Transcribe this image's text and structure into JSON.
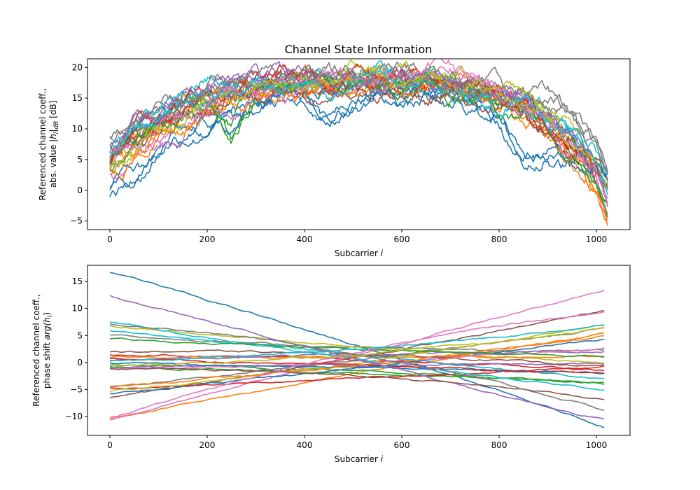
{
  "figure": {
    "title": "Channel State Information"
  },
  "palette": [
    "#1f77b4",
    "#ff7f0e",
    "#2ca02c",
    "#d62728",
    "#9467bd",
    "#8c564b",
    "#e377c2",
    "#7f7f7f",
    "#bcbd22",
    "#17becf"
  ],
  "chart_data": [
    {
      "type": "line",
      "title": "Channel State Information",
      "xlabel_text": "Subcarrier ",
      "xlabel_var": "i",
      "ylabel_line1": "Referenced channel coeff.,",
      "ylabel_line2_text": "abs. value ",
      "ylabel_line2_expr": "|h",
      "ylabel_line2_sub": "i",
      "ylabel_line2_expr2": "|",
      "ylabel_line2_sub2": "dB",
      "ylabel_line2_unit": " [dB]",
      "xlim": [
        -46,
        1069
      ],
      "ylim": [
        -6.4,
        21.4
      ],
      "x_ticks": [
        0,
        200,
        400,
        600,
        800,
        1000
      ],
      "y_ticks": [
        -5,
        0,
        5,
        10,
        15,
        20
      ],
      "x_range": [
        0,
        1023
      ],
      "grid": false,
      "legend": "none",
      "series_note": "about 30 noisy traces; each rises from 0-8 at i=0 to a 15-19 plateau around i=300-750 and falls to -5-6 at i=1023",
      "series": [
        {
          "x": [
            0,
            50,
            100,
            150,
            200,
            250,
            300,
            350,
            400,
            450,
            500,
            550,
            600,
            650,
            700,
            750,
            800,
            850,
            900,
            950,
            1000,
            1023
          ],
          "values": [
            0.4,
            3,
            6.5,
            9.5,
            11,
            12,
            14,
            15.8,
            16,
            11.7,
            14.5,
            16.5,
            15,
            16.5,
            15,
            14.5,
            12,
            6,
            6,
            5.5,
            5,
            3
          ]
        },
        {
          "x": [
            0,
            50,
            100,
            150,
            200,
            250,
            300,
            350,
            400,
            450,
            500,
            550,
            600,
            650,
            700,
            750,
            800,
            850,
            900,
            950,
            1000,
            1023
          ],
          "values": [
            3,
            6.5,
            9,
            11.5,
            13,
            14.5,
            15.5,
            16,
            17,
            16.5,
            17,
            17.5,
            17.5,
            17,
            16.5,
            15.5,
            14,
            12,
            9,
            5,
            0,
            -5
          ]
        },
        {
          "x": [
            0,
            50,
            100,
            150,
            200,
            250,
            300,
            350,
            400,
            450,
            500,
            550,
            600,
            650,
            700,
            750,
            800,
            850,
            900,
            950,
            1000,
            1023
          ],
          "values": [
            4,
            8,
            11,
            12.5,
            14,
            9,
            16,
            17,
            17.5,
            18,
            17.5,
            16.5,
            17,
            18,
            16.5,
            15,
            14,
            13.5,
            11,
            6.5,
            0.5,
            -3
          ]
        },
        {
          "x": [
            0,
            50,
            100,
            150,
            200,
            250,
            300,
            350,
            400,
            450,
            500,
            550,
            600,
            650,
            700,
            750,
            800,
            850,
            900,
            950,
            1000,
            1023
          ],
          "values": [
            5,
            9,
            11,
            13,
            15,
            16,
            17,
            18,
            17,
            16,
            18,
            17.5,
            18,
            17,
            17,
            16,
            15.5,
            13,
            10,
            6,
            3,
            0
          ]
        },
        {
          "x": [
            0,
            50,
            100,
            150,
            200,
            250,
            300,
            350,
            400,
            450,
            500,
            550,
            600,
            650,
            700,
            750,
            800,
            850,
            900,
            950,
            1000,
            1023
          ],
          "values": [
            6,
            10,
            12.5,
            14.5,
            16,
            17.5,
            18.5,
            19,
            18.5,
            18,
            18.5,
            18.5,
            19,
            18.5,
            17.5,
            16.5,
            16,
            15,
            12.5,
            9,
            4,
            -2
          ]
        },
        {
          "x": [
            0,
            50,
            100,
            150,
            200,
            250,
            300,
            350,
            400,
            450,
            500,
            550,
            600,
            650,
            700,
            750,
            800,
            850,
            900,
            950,
            1000,
            1023
          ],
          "values": [
            5.5,
            9,
            11,
            13,
            14,
            15.5,
            16,
            16.5,
            17,
            16,
            17,
            17,
            16,
            16,
            16.5,
            15,
            14,
            13,
            11,
            8,
            4,
            1
          ]
        },
        {
          "x": [
            0,
            50,
            100,
            150,
            200,
            250,
            300,
            350,
            400,
            450,
            500,
            550,
            600,
            650,
            700,
            750,
            800,
            850,
            900,
            950,
            1000,
            1023
          ],
          "values": [
            3.5,
            6.5,
            9,
            11,
            13.5,
            15,
            16,
            16.5,
            17,
            17.5,
            18,
            17,
            18.5,
            20,
            19,
            18,
            16,
            14,
            11,
            7,
            2,
            -4
          ]
        },
        {
          "x": [
            0,
            50,
            100,
            150,
            200,
            250,
            300,
            350,
            400,
            450,
            500,
            550,
            600,
            650,
            700,
            750,
            800,
            850,
            900,
            950,
            1000,
            1023
          ],
          "values": [
            6.5,
            10,
            12,
            14,
            15.5,
            17,
            17.5,
            18,
            18.5,
            18,
            17.5,
            18,
            19,
            18,
            17,
            16.5,
            16,
            15.5,
            14.5,
            12,
            7,
            2
          ]
        },
        {
          "x": [
            0,
            50,
            100,
            150,
            200,
            250,
            300,
            350,
            400,
            450,
            500,
            550,
            600,
            650,
            700,
            750,
            800,
            850,
            900,
            950,
            1000,
            1023
          ],
          "values": [
            4.5,
            7.5,
            10,
            12.5,
            14.5,
            16,
            17,
            17.5,
            18,
            17.5,
            18.5,
            19,
            18.5,
            18,
            17.5,
            17,
            16,
            14.5,
            12.5,
            9,
            4,
            0
          ]
        },
        {
          "x": [
            0,
            50,
            100,
            150,
            200,
            250,
            300,
            350,
            400,
            450,
            500,
            550,
            600,
            650,
            700,
            750,
            800,
            850,
            900,
            950,
            1000,
            1023
          ],
          "values": [
            8,
            10.5,
            13,
            16,
            17,
            17.5,
            18,
            18.5,
            18,
            17,
            18.5,
            19.5,
            18.5,
            17.5,
            17,
            16.5,
            15.5,
            15,
            13,
            10,
            5,
            1
          ]
        }
      ]
    },
    {
      "type": "line",
      "xlabel_text": "Subcarrier ",
      "xlabel_var": "i",
      "ylabel_line1": "Referenced channel coeff.,",
      "ylabel_line2_text": "phase shift ",
      "ylabel_line2_expr": "arg(h",
      "ylabel_line2_sub": "i",
      "ylabel_line2_expr2": ")",
      "xlim": [
        -46,
        1069
      ],
      "ylim": [
        -13.5,
        18.0
      ],
      "x_ticks": [
        0,
        200,
        400,
        600,
        800,
        1000
      ],
      "y_ticks": [
        -10,
        -5,
        0,
        5,
        10,
        15
      ],
      "x_range": [
        0,
        1023
      ],
      "grid": false,
      "legend": "none",
      "series_note": "about 30 roughly straight phase traces crossing near i=520, y=2.5",
      "series": [
        {
          "start": 16.8,
          "end": -12.1,
          "mid": 3.0
        },
        {
          "start": -10.3,
          "end": 5.3,
          "mid": -2.0
        },
        {
          "start": -0.5,
          "end": -4.0,
          "mid": -1.5
        },
        {
          "start": 1.5,
          "end": -1.5,
          "mid": 0.5
        },
        {
          "start": -0.8,
          "end": -0.2,
          "mid": -0.5
        },
        {
          "start": -6.5,
          "end": 9.8,
          "mid": 1.0
        },
        {
          "start": -10.6,
          "end": 13.6,
          "mid": 1.5
        },
        {
          "start": 5.2,
          "end": 2.2,
          "mid": 2.8
        },
        {
          "start": 6.8,
          "end": -0.2,
          "mid": 3.0
        },
        {
          "start": 5.8,
          "end": -3.2,
          "mid": 1.5
        },
        {
          "start": -5.8,
          "end": 4.5,
          "mid": -1.0
        },
        {
          "start": 1.0,
          "end": 1.0,
          "mid": 1.0
        },
        {
          "start": -1.0,
          "end": -3.8,
          "mid": -2.0
        },
        {
          "start": -4.8,
          "end": -0.8,
          "mid": -3.0
        },
        {
          "start": 0.5,
          "end": 2.0,
          "mid": 1.5
        },
        {
          "start": 2.0,
          "end": -0.8,
          "mid": 1.5
        },
        {
          "start": -1.2,
          "end": 2.8,
          "mid": 0.0
        },
        {
          "start": -4.5,
          "end": 6.3,
          "mid": 0.5
        },
        {
          "start": -5.3,
          "end": 7.2,
          "mid": 0.0
        },
        {
          "start": 7.4,
          "end": -5.0,
          "mid": 0.5
        },
        {
          "start": 0.0,
          "end": -1.8,
          "mid": -1.0
        },
        {
          "start": -4.6,
          "end": 5.0,
          "mid": -0.5
        },
        {
          "start": 4.3,
          "end": 1.0,
          "mid": 2.5
        },
        {
          "start": 0.8,
          "end": -2.2,
          "mid": -0.5
        },
        {
          "start": 12.4,
          "end": -10.8,
          "mid": 0.5
        },
        {
          "start": -1.2,
          "end": -6.8,
          "mid": -2.5
        },
        {
          "start": -10.5,
          "end": 9.3,
          "mid": 2.0
        },
        {
          "start": 7.2,
          "end": -9.0,
          "mid": 1.5
        },
        {
          "start": -0.5,
          "end": 6.3,
          "mid": 1.5
        },
        {
          "start": 0.3,
          "end": 7.0,
          "mid": 2.5
        }
      ]
    }
  ]
}
